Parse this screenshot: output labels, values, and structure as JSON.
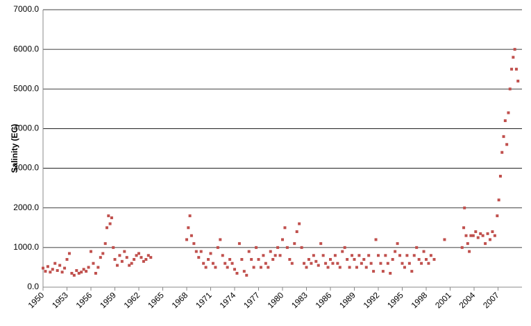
{
  "chart_data": {
    "type": "scatter",
    "y_label": "Salinity (EC)",
    "color": "#c0504d",
    "grid": true,
    "xlim": [
      1950,
      2010
    ],
    "xticks": [
      1950,
      1953,
      1956,
      1959,
      1962,
      1965,
      1968,
      1971,
      1974,
      1977,
      1980,
      1983,
      1986,
      1989,
      1992,
      1995,
      1998,
      2001,
      2004,
      2007
    ],
    "ylim": [
      0,
      7000
    ],
    "yticks": [
      {
        "value": 0,
        "label": "0.0"
      },
      {
        "value": 1000,
        "label": "1000.0"
      },
      {
        "value": 2000,
        "label": "2000.0"
      },
      {
        "value": 3000,
        "label": "3000.0"
      },
      {
        "value": 4000,
        "label": "4000.0"
      },
      {
        "value": 5000,
        "label": "5000.0"
      },
      {
        "value": 6000,
        "label": "6000.0"
      },
      {
        "value": 7000,
        "label": "7000.0"
      }
    ],
    "x": [
      1950.0,
      1950.3,
      1950.6,
      1950.9,
      1951.2,
      1951.5,
      1951.8,
      1952.1,
      1952.4,
      1952.7,
      1953.0,
      1953.3,
      1953.6,
      1953.9,
      1954.2,
      1954.5,
      1954.8,
      1955.1,
      1955.4,
      1955.7,
      1956.0,
      1956.3,
      1956.6,
      1956.9,
      1957.2,
      1957.5,
      1957.8,
      1958.0,
      1958.2,
      1958.4,
      1958.6,
      1958.8,
      1959.0,
      1959.3,
      1959.6,
      1959.9,
      1960.2,
      1960.5,
      1960.8,
      1961.1,
      1961.4,
      1961.7,
      1962.0,
      1962.3,
      1962.6,
      1962.9,
      1963.2,
      1963.5,
      1968.0,
      1968.2,
      1968.4,
      1968.6,
      1968.9,
      1969.2,
      1969.5,
      1969.8,
      1970.1,
      1970.4,
      1970.7,
      1971.0,
      1971.3,
      1971.6,
      1971.9,
      1972.2,
      1972.5,
      1972.8,
      1973.1,
      1973.4,
      1973.7,
      1974.0,
      1974.3,
      1974.6,
      1974.9,
      1975.2,
      1975.5,
      1975.8,
      1976.1,
      1976.4,
      1976.7,
      1977.0,
      1977.3,
      1977.6,
      1977.9,
      1978.2,
      1978.5,
      1978.8,
      1979.1,
      1979.4,
      1979.7,
      1980.0,
      1980.3,
      1980.6,
      1980.9,
      1981.2,
      1981.5,
      1981.8,
      1982.1,
      1982.4,
      1982.7,
      1983.0,
      1983.3,
      1983.6,
      1983.9,
      1984.2,
      1984.5,
      1984.8,
      1985.1,
      1985.4,
      1985.7,
      1986.0,
      1986.3,
      1986.6,
      1986.9,
      1987.2,
      1987.5,
      1987.8,
      1988.1,
      1988.4,
      1988.7,
      1989.0,
      1989.3,
      1989.6,
      1989.9,
      1990.2,
      1990.5,
      1990.8,
      1991.1,
      1991.4,
      1991.7,
      1992.0,
      1992.3,
      1992.6,
      1992.9,
      1993.2,
      1993.5,
      1993.8,
      1994.1,
      1994.4,
      1994.7,
      1995.0,
      1995.3,
      1995.6,
      1995.9,
      1996.2,
      1996.5,
      1996.8,
      1997.1,
      1997.4,
      1997.7,
      1998.0,
      1998.3,
      1998.6,
      1999.0,
      2000.3,
      2002.5,
      2002.7,
      2002.8,
      2003.0,
      2003.2,
      2003.4,
      2003.6,
      2003.9,
      2004.2,
      2004.5,
      2004.8,
      2005.1,
      2005.4,
      2005.7,
      2006.0,
      2006.3,
      2006.6,
      2006.9,
      2007.1,
      2007.3,
      2007.5,
      2007.7,
      2007.9,
      2008.1,
      2008.3,
      2008.5,
      2008.7,
      2008.9,
      2009.1,
      2009.3,
      2009.5
    ],
    "values": [
      480,
      400,
      520,
      380,
      450,
      600,
      420,
      550,
      380,
      480,
      700,
      850,
      350,
      300,
      420,
      350,
      380,
      450,
      400,
      500,
      900,
      600,
      350,
      500,
      750,
      850,
      1100,
      1500,
      1800,
      1600,
      1750,
      1000,
      700,
      550,
      800,
      650,
      900,
      750,
      550,
      600,
      700,
      800,
      850,
      750,
      650,
      700,
      800,
      750,
      1200,
      1500,
      1800,
      1300,
      1100,
      900,
      750,
      900,
      600,
      500,
      700,
      850,
      600,
      500,
      1000,
      1200,
      800,
      600,
      500,
      700,
      600,
      450,
      350,
      1100,
      700,
      400,
      300,
      900,
      700,
      500,
      1000,
      700,
      500,
      800,
      600,
      500,
      900,
      700,
      800,
      1000,
      800,
      1200,
      1500,
      1000,
      700,
      600,
      1100,
      1400,
      1600,
      1000,
      600,
      500,
      700,
      600,
      800,
      650,
      550,
      1100,
      800,
      600,
      500,
      700,
      600,
      800,
      600,
      500,
      900,
      1000,
      700,
      500,
      800,
      700,
      500,
      800,
      600,
      700,
      500,
      800,
      600,
      400,
      1200,
      800,
      600,
      400,
      800,
      600,
      350,
      700,
      900,
      1100,
      800,
      600,
      500,
      800,
      600,
      400,
      800,
      1000,
      700,
      600,
      900,
      700,
      600,
      800,
      700,
      1200,
      1000,
      1500,
      2000,
      1300,
      1100,
      900,
      1300,
      1300,
      1400,
      1250,
      1350,
      1300,
      1100,
      1350,
      1200,
      1400,
      1300,
      1800,
      2200,
      2800,
      3400,
      3800,
      4200,
      3600,
      4400,
      5000,
      5500,
      5800,
      6000,
      5500,
      5200
    ]
  }
}
